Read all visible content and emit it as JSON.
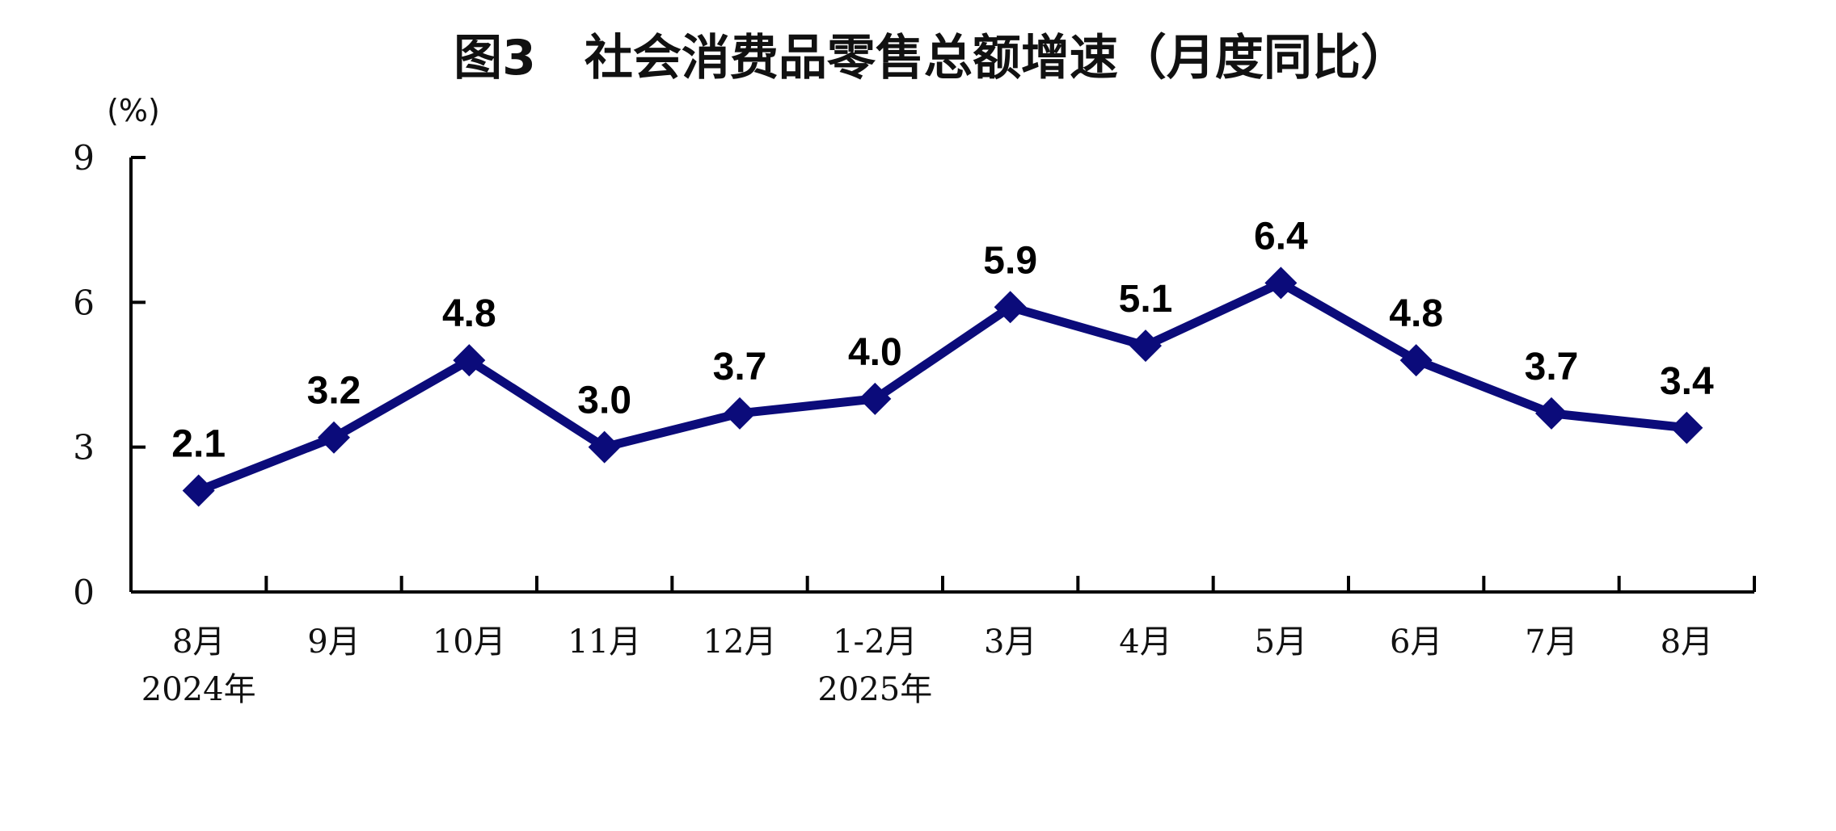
{
  "chart_data": {
    "type": "line",
    "title": "图3　社会消费品零售总额增速（月度同比）",
    "ylabel": "(%)",
    "xlabel": "",
    "ylim": [
      0,
      9
    ],
    "yticks": [
      "0",
      "3",
      "6",
      "9"
    ],
    "categories": [
      "8月",
      "9月",
      "10月",
      "11月",
      "12月",
      "1-2月",
      "3月",
      "4月",
      "5月",
      "6月",
      "7月",
      "8月"
    ],
    "year_labels": [
      {
        "category_index": 0,
        "label": "2024年"
      },
      {
        "category_index": 5,
        "label": "2025年"
      }
    ],
    "series": [
      {
        "values": [
          2.1,
          3.2,
          4.8,
          3.0,
          3.7,
          4.0,
          5.9,
          5.1,
          6.4,
          4.8,
          3.7,
          3.4
        ],
        "labels": [
          "2.1",
          "3.2",
          "4.8",
          "3.0",
          "3.7",
          "4.0",
          "5.9",
          "5.1",
          "6.4",
          "4.8",
          "3.7",
          "3.4"
        ],
        "color": "#0b0b7a",
        "marker": "diamond"
      }
    ],
    "grid": false,
    "legend": "none"
  }
}
